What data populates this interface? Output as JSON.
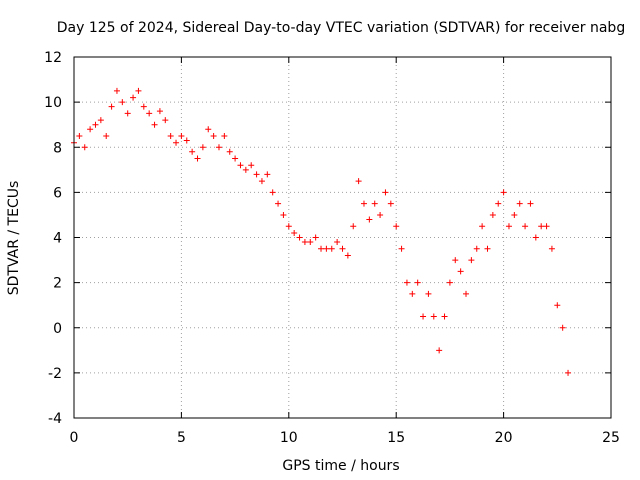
{
  "chart_data": {
    "type": "scatter",
    "title": "Day 125 of 2024, Sidereal Day-to-day VTEC variation (SDTVAR) for receiver nabg",
    "xlabel": "GPS time / hours",
    "ylabel": "SDTVAR / TECUs",
    "xlim": [
      0,
      25
    ],
    "ylim": [
      -4,
      12
    ],
    "grid": true,
    "marker": "+",
    "color": "#ff0000",
    "x_ticks": [
      0,
      5,
      10,
      15,
      20,
      25
    ],
    "y_ticks": [
      -4,
      -2,
      0,
      2,
      4,
      6,
      8,
      10,
      12
    ],
    "series": [
      {
        "name": "SDTVAR",
        "x": [
          0.0,
          0.25,
          0.5,
          0.75,
          1.0,
          1.25,
          1.5,
          1.75,
          2.0,
          2.25,
          2.5,
          2.75,
          3.0,
          3.25,
          3.5,
          3.75,
          4.0,
          4.25,
          4.5,
          4.75,
          5.0,
          5.25,
          5.5,
          5.75,
          6.0,
          6.25,
          6.5,
          6.75,
          7.0,
          7.25,
          7.5,
          7.75,
          8.0,
          8.25,
          8.5,
          8.75,
          9.0,
          9.25,
          9.5,
          9.75,
          10.0,
          10.25,
          10.5,
          10.75,
          11.0,
          11.25,
          11.5,
          11.75,
          12.0,
          12.25,
          12.5,
          12.75,
          13.0,
          13.25,
          13.5,
          13.75,
          14.0,
          14.25,
          14.5,
          14.75,
          15.0,
          15.25,
          15.5,
          15.75,
          16.0,
          16.25,
          16.5,
          16.75,
          17.0,
          17.25,
          17.5,
          17.75,
          18.0,
          18.25,
          18.5,
          18.75,
          19.0,
          19.25,
          19.5,
          19.75,
          20.0,
          20.25,
          20.5,
          20.75,
          21.0,
          21.25,
          21.5,
          21.75,
          22.0,
          22.25,
          22.5,
          22.75,
          23.0
        ],
        "y": [
          8.2,
          8.5,
          8.0,
          8.8,
          9.0,
          9.2,
          8.5,
          9.8,
          10.5,
          10.0,
          9.5,
          10.2,
          10.5,
          9.8,
          9.5,
          9.0,
          9.6,
          9.2,
          8.5,
          8.2,
          8.5,
          8.3,
          7.8,
          7.5,
          8.0,
          8.8,
          8.5,
          8.0,
          8.5,
          7.8,
          7.5,
          7.2,
          7.0,
          7.2,
          6.8,
          6.5,
          6.8,
          6.0,
          5.5,
          5.0,
          4.5,
          4.2,
          4.0,
          3.8,
          3.8,
          4.0,
          3.5,
          3.5,
          3.5,
          3.8,
          3.5,
          3.2,
          4.5,
          6.5,
          5.5,
          4.8,
          5.5,
          5.0,
          6.0,
          5.5,
          4.5,
          3.5,
          2.0,
          1.5,
          2.0,
          0.5,
          1.5,
          0.5,
          -1.0,
          0.5,
          2.0,
          3.0,
          2.5,
          1.5,
          3.0,
          3.5,
          4.5,
          3.5,
          5.0,
          5.5,
          6.0,
          4.5,
          5.0,
          5.5,
          4.5,
          5.5,
          4.0,
          4.5,
          4.5,
          3.5,
          1.0,
          0.0,
          -2.0
        ]
      }
    ]
  }
}
